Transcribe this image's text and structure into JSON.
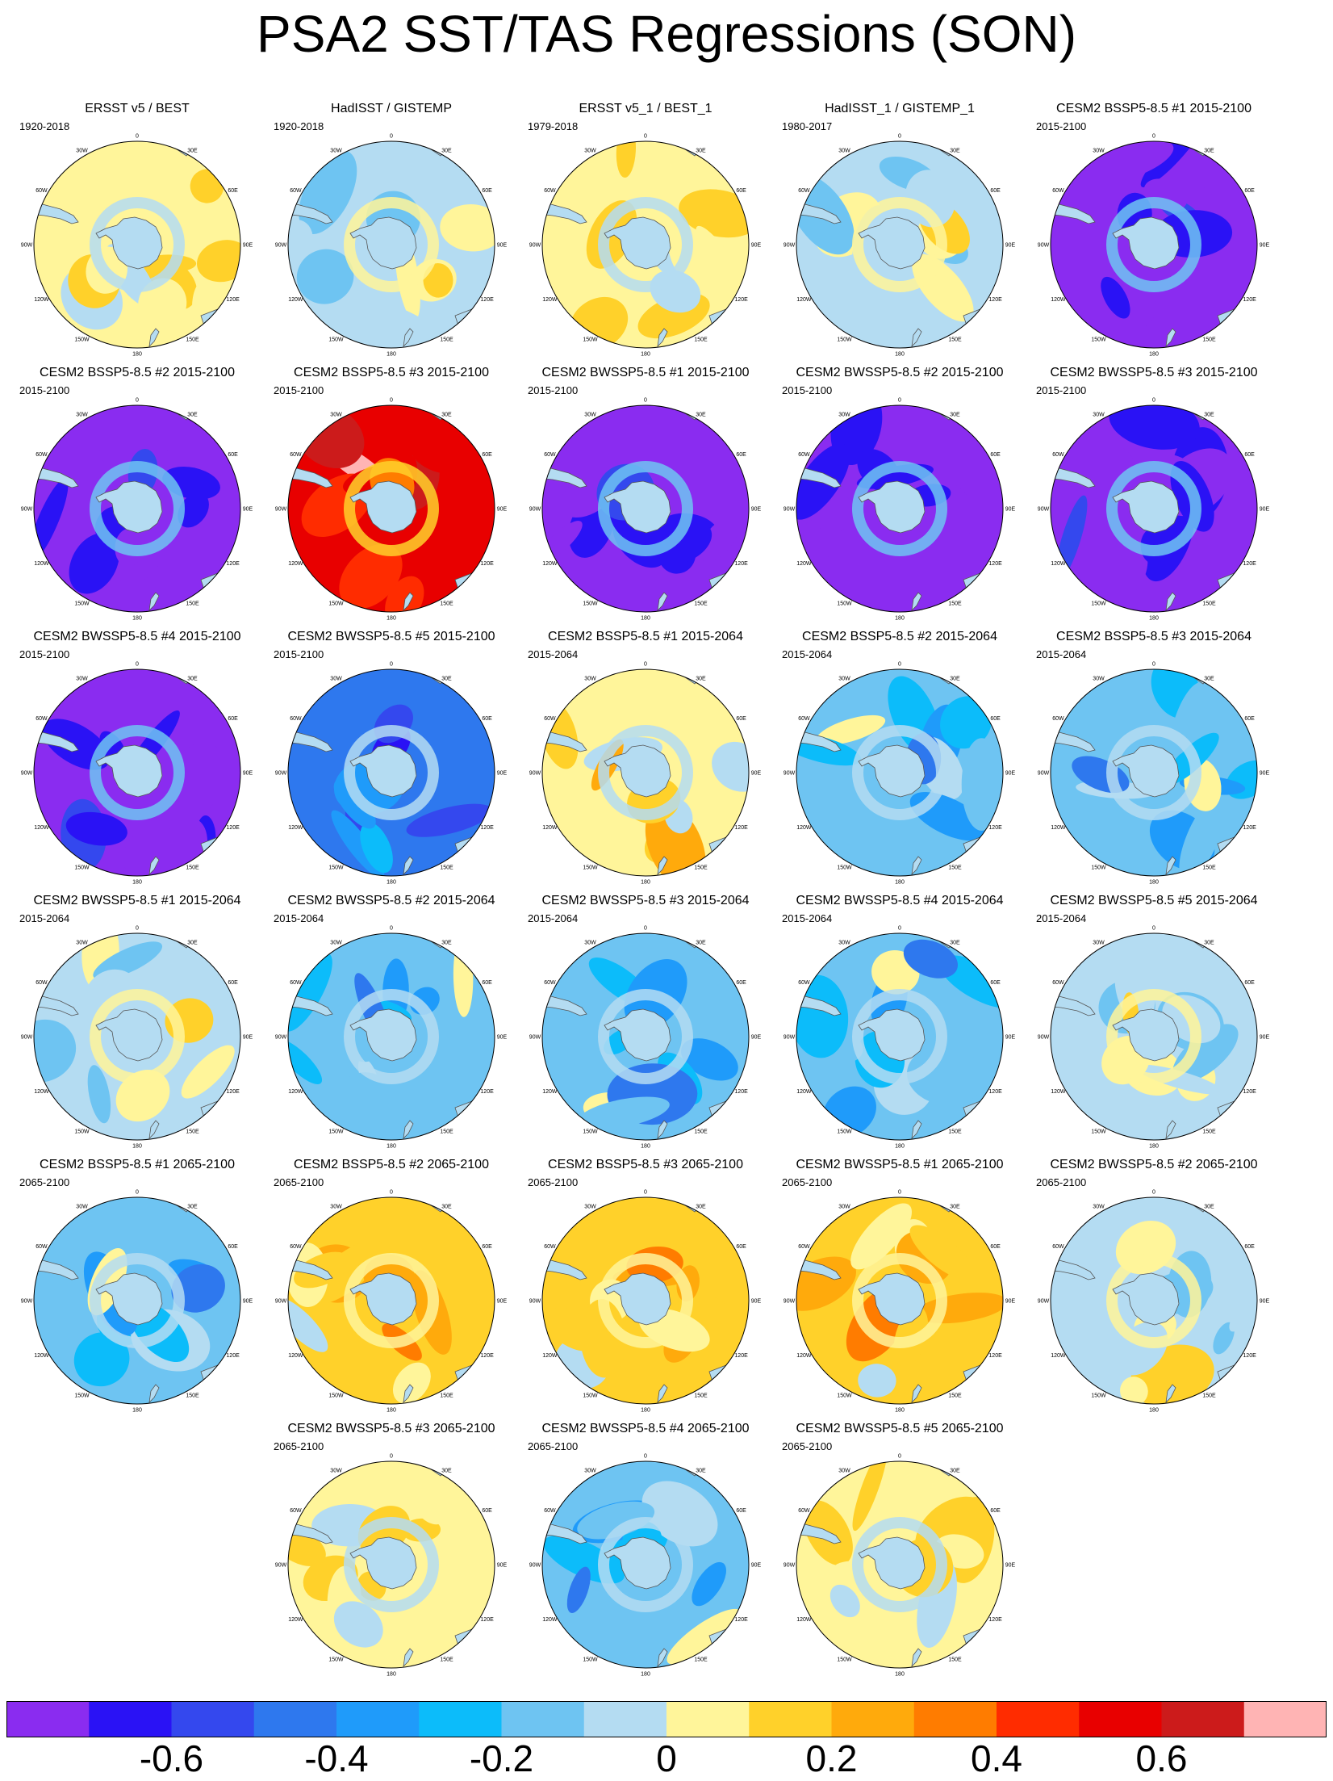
{
  "title": "PSA2 SST/TAS Regressions (SON)",
  "map_labels": {
    "lon0": "0",
    "lon30e": "30E",
    "lon60e": "60E",
    "lon90e": "90E",
    "lon120e": "120E",
    "lon150e": "150E",
    "lon180": "180",
    "lon150w": "150W",
    "lon120w": "120W",
    "lon90w": "90W",
    "lon60w": "60W",
    "lon30w": "30W"
  },
  "panels": [
    {
      "title": "ERSST v5 / BEST",
      "period": "1920-2018",
      "pattern": "weak_warm"
    },
    {
      "title": "HadISST / GISTEMP",
      "period": "1920-2018",
      "pattern": "mixed_cool"
    },
    {
      "title": "ERSST v5_1 / BEST_1",
      "period": "1979-2018",
      "pattern": "weak_warm"
    },
    {
      "title": "HadISST_1 / GISTEMP_1",
      "period": "1980-2017",
      "pattern": "mixed_cool"
    },
    {
      "title": "CESM2 BSSP5-8.5 #1 2015-2100",
      "period": "2015-2100",
      "pattern": "strong_cool"
    },
    {
      "title": "CESM2 BSSP5-8.5 #2 2015-2100",
      "period": "2015-2100",
      "pattern": "strong_cool"
    },
    {
      "title": "CESM2 BSSP5-8.5 #3 2015-2100",
      "period": "2015-2100",
      "pattern": "strong_warm"
    },
    {
      "title": "CESM2 BWSSP5-8.5 #1 2015-2100",
      "period": "2015-2100",
      "pattern": "strong_cool"
    },
    {
      "title": "CESM2 BWSSP5-8.5 #2 2015-2100",
      "period": "2015-2100",
      "pattern": "strong_cool"
    },
    {
      "title": "CESM2 BWSSP5-8.5 #3 2015-2100",
      "period": "2015-2100",
      "pattern": "strong_cool"
    },
    {
      "title": "CESM2 BWSSP5-8.5 #4 2015-2100",
      "period": "2015-2100",
      "pattern": "strong_cool"
    },
    {
      "title": "CESM2 BWSSP5-8.5 #5 2015-2100",
      "period": "2015-2100",
      "pattern": "med_cool"
    },
    {
      "title": "CESM2 BSSP5-8.5 #1 2015-2064",
      "period": "2015-2064",
      "pattern": "mixed_warm"
    },
    {
      "title": "CESM2 BSSP5-8.5 #2 2015-2064",
      "period": "2015-2064",
      "pattern": "cool"
    },
    {
      "title": "CESM2 BSSP5-8.5 #3 2015-2064",
      "period": "2015-2064",
      "pattern": "cool"
    },
    {
      "title": "CESM2 BWSSP5-8.5 #1 2015-2064",
      "period": "2015-2064",
      "pattern": "mixed_cool"
    },
    {
      "title": "CESM2 BWSSP5-8.5 #2 2015-2064",
      "period": "2015-2064",
      "pattern": "cool"
    },
    {
      "title": "CESM2 BWSSP5-8.5 #3 2015-2064",
      "period": "2015-2064",
      "pattern": "cool"
    },
    {
      "title": "CESM2 BWSSP5-8.5 #4 2015-2064",
      "period": "2015-2064",
      "pattern": "cool"
    },
    {
      "title": "CESM2 BWSSP5-8.5 #5 2015-2064",
      "period": "2015-2064",
      "pattern": "mixed_cool"
    },
    {
      "title": "CESM2 BSSP5-8.5 #1 2065-2100",
      "period": "2065-2100",
      "pattern": "cool"
    },
    {
      "title": "CESM2 BSSP5-8.5 #2 2065-2100",
      "period": "2065-2100",
      "pattern": "warm"
    },
    {
      "title": "CESM2 BSSP5-8.5 #3 2065-2100",
      "period": "2065-2100",
      "pattern": "warm"
    },
    {
      "title": "CESM2 BWSSP5-8.5 #1 2065-2100",
      "period": "2065-2100",
      "pattern": "warm"
    },
    {
      "title": "CESM2 BWSSP5-8.5 #2 2065-2100",
      "period": "2065-2100",
      "pattern": "mixed_cool"
    },
    {
      "title": "CESM2 BWSSP5-8.5 #3 2065-2100",
      "period": "2065-2100",
      "pattern": "weak_warm"
    },
    {
      "title": "CESM2 BWSSP5-8.5 #4 2065-2100",
      "period": "2065-2100",
      "pattern": "cool"
    },
    {
      "title": "CESM2 BWSSP5-8.5 #5 2065-2100",
      "period": "2065-2100",
      "pattern": "weak_warm"
    }
  ],
  "colorbar": {
    "colors": [
      "#8a2cf0",
      "#2a12f5",
      "#3448ee",
      "#2e78ee",
      "#1f9bfa",
      "#0cbcfa",
      "#6ec4f2",
      "#b4dcf2",
      "#fff59a",
      "#ffd12a",
      "#ffaa0c",
      "#ff7c00",
      "#ff2c00",
      "#e80000",
      "#cc1b1b",
      "#ffb4b4"
    ],
    "labels": [
      "-0.6",
      "-0.4",
      "-0.2",
      "0",
      "0.2",
      "0.4",
      "0.6"
    ]
  }
}
